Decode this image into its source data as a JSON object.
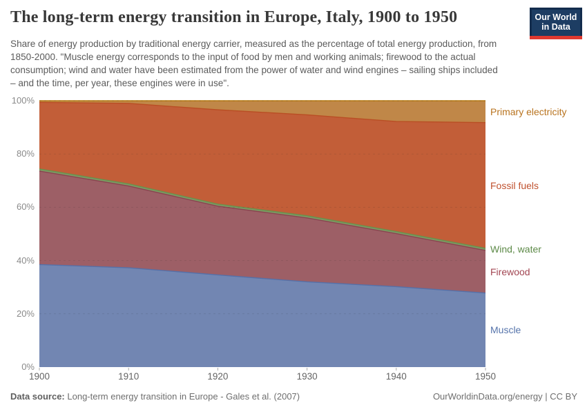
{
  "header": {
    "title": "The long-term energy transition in Europe, Italy, 1900 to 1950",
    "logo": {
      "line1": "Our World",
      "line2": "in Data",
      "bg_color": "#1d3d63",
      "bar_color": "#e03930"
    }
  },
  "subtitle": "Share of energy production by traditional energy carrier, measured as the percentage of total energy production, from 1850-2000. \"Muscle energy corresponds to the input of food by men and working animals; firewood to the actual consumption; wind and water have been estimated from the power of water and wind engines – sailing ships included – and the time, per year, these engines were in use\".",
  "chart_data": {
    "type": "area",
    "stacked": true,
    "x": [
      1900,
      1910,
      1920,
      1930,
      1940,
      1950
    ],
    "x_tick_labels": [
      "1900",
      "1910",
      "1920",
      "1930",
      "1940",
      "1950"
    ],
    "y_ticks": [
      {
        "label": "0%",
        "value": 0
      },
      {
        "label": "20%",
        "value": 20
      },
      {
        "label": "40%",
        "value": 40
      },
      {
        "label": "60%",
        "value": 60
      },
      {
        "label": "80%",
        "value": 80
      },
      {
        "label": "100%",
        "value": 100
      }
    ],
    "ylim": [
      0,
      100
    ],
    "unit": "%",
    "grid": "dashed-horizontal",
    "legend_position": "right",
    "series": [
      {
        "name": "Muscle",
        "values": [
          38.5,
          37.3,
          34.6,
          32.0,
          30.2,
          27.8
        ],
        "fill": "#7286B2",
        "line": "#5570A8",
        "label_color": "#5674AB"
      },
      {
        "name": "Firewood",
        "values": [
          35.1,
          30.7,
          25.8,
          24.0,
          19.9,
          16.0
        ],
        "fill": "#9D5F66",
        "line": "#8A4450",
        "label_color": "#A24652"
      },
      {
        "name": "Wind, water",
        "values": [
          0.8,
          0.8,
          0.8,
          0.8,
          0.8,
          0.8
        ],
        "fill": "#7E9A64",
        "line": "#6A8F4D",
        "label_color": "#5D8A48"
      },
      {
        "name": "Fossil fuels",
        "values": [
          25.0,
          30.2,
          35.4,
          37.9,
          41.3,
          47.2
        ],
        "fill": "#C25E38",
        "line": "#B94E24",
        "label_color": "#C0512E"
      },
      {
        "name": "Primary electricity",
        "values": [
          0.6,
          1.0,
          3.4,
          5.3,
          7.8,
          8.2
        ],
        "fill": "#C08748",
        "line": "#B5790F",
        "label_color": "#B8731E"
      }
    ]
  },
  "footer": {
    "source_label": "Data source:",
    "source_text": "Long-term energy transition in Europe - Gales et al. (2007)",
    "credit": "OurWorldinData.org/energy | CC BY"
  }
}
